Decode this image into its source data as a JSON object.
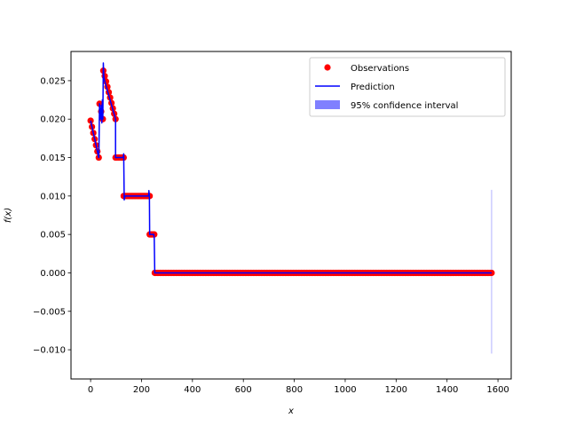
{
  "chart_data": {
    "type": "scatter",
    "xlabel": "x",
    "ylabel": "f(x)",
    "xlim": [
      -77,
      1652
    ],
    "ylim": [
      -0.0138,
      0.0288
    ],
    "x_ticks": [
      0,
      200,
      400,
      600,
      800,
      1000,
      1200,
      1400,
      1600
    ],
    "y_ticks": [
      -0.01,
      -0.005,
      0.0,
      0.005,
      0.01,
      0.015,
      0.02,
      0.025
    ],
    "x_tick_labels": [
      "0",
      "200",
      "400",
      "600",
      "800",
      "1000",
      "1200",
      "1400",
      "1600"
    ],
    "y_tick_labels": [
      "−0.010",
      "−0.005",
      "0.000",
      "0.005",
      "0.010",
      "0.015",
      "0.020",
      "0.025"
    ],
    "grid": false,
    "legend_position": "top-right",
    "legend": [
      {
        "label": "Observations",
        "kind": "marker",
        "color": "#ff0000"
      },
      {
        "label": "Prediction",
        "kind": "line",
        "color": "#0000ff"
      },
      {
        "label": "95% confidence interval",
        "kind": "patch",
        "color": "#8080ff"
      }
    ],
    "observation_segments": [
      {
        "x": [
          0,
          32
        ],
        "y": [
          0.0198,
          0.015
        ]
      },
      {
        "x": [
          35,
          48
        ],
        "y": [
          0.022,
          0.02
        ]
      },
      {
        "x": [
          50,
          98
        ],
        "y": [
          0.0263,
          0.02
        ]
      },
      {
        "x": [
          98,
          130
        ],
        "y": [
          0.015,
          0.015
        ]
      },
      {
        "x": [
          130,
          232
        ],
        "y": [
          0.01,
          0.01
        ]
      },
      {
        "x": [
          232,
          250
        ],
        "y": [
          0.005,
          0.005
        ]
      },
      {
        "x": [
          252,
          1575
        ],
        "y": [
          0.0,
          0.0
        ]
      }
    ],
    "prediction": {
      "x": [
        0,
        32,
        33,
        35,
        38,
        42,
        44,
        46,
        48,
        49,
        50,
        52,
        55,
        98,
        98,
        100,
        128,
        130,
        132,
        135,
        228,
        229,
        231,
        232,
        235,
        248,
        250,
        252,
        1575
      ],
      "y": [
        0.0198,
        0.015,
        0.0165,
        0.022,
        0.02,
        0.0218,
        0.0195,
        0.0225,
        0.02,
        0.0235,
        0.0273,
        0.0255,
        0.025,
        0.02,
        0.015,
        0.015,
        0.015,
        0.0155,
        0.0095,
        0.01,
        0.01,
        0.0107,
        0.0098,
        0.005,
        0.005,
        0.005,
        0.0045,
        0.0,
        0.0
      ]
    },
    "confidence_interval": {
      "x": 1575,
      "lower": -0.0105,
      "upper": 0.0108,
      "color": "#8080ff"
    }
  }
}
